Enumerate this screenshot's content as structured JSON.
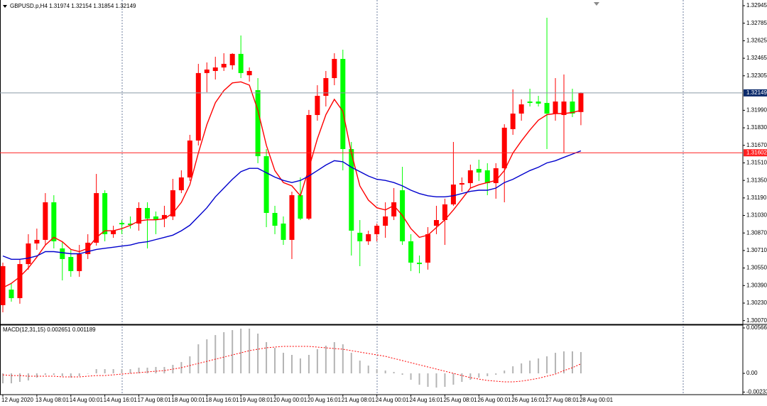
{
  "chart_data": [
    {
      "type": "candlestick",
      "title": "GBPUSD.p,H4  1.31974 1.32154 1.31854 1.32149",
      "categories": [
        "12 Aug 2020",
        null,
        null,
        null,
        "13 Aug 08:01",
        null,
        null,
        null,
        "14 Aug 00:01",
        null,
        null,
        null,
        "14 Aug 16:01",
        null,
        null,
        null,
        "17 Aug 08:01",
        null,
        null,
        null,
        "18 Aug 00:01",
        null,
        null,
        null,
        "18 Aug 16:01",
        null,
        null,
        null,
        "19 Aug 08:01",
        null,
        null,
        null,
        "20 Aug 00:01",
        null,
        null,
        null,
        "20 Aug 16:01",
        null,
        null,
        null,
        "21 Aug 08:01",
        null,
        null,
        null,
        "24 Aug 00:01",
        null,
        null,
        null,
        "24 Aug 16:01",
        null,
        null,
        null,
        "25 Aug 08:01",
        null,
        null,
        null,
        "26 Aug 00:01",
        null,
        null,
        null,
        "26 Aug 16:01",
        null,
        null,
        null,
        "27 Aug 08:01",
        null,
        null,
        null,
        "28 Aug 00:01"
      ],
      "open": [
        1.30211,
        1.30353,
        1.30275,
        1.30586,
        1.30774,
        1.30807,
        1.3115,
        1.30729,
        1.30651,
        1.30522,
        1.30677,
        1.30781,
        1.31234,
        1.30859,
        1.30962,
        1.30956,
        1.30956,
        1.31098,
        1.31021,
        1.31001,
        1.31021,
        1.3126,
        1.31377,
        1.31714,
        1.3233,
        1.32349,
        1.32381,
        1.32401,
        1.32505,
        1.3231,
        1.32174,
        1.31571,
        1.31053,
        1.30956,
        1.30807,
        1.31215,
        1.31001,
        1.31947,
        1.32122,
        1.32284,
        1.32459,
        1.31636,
        1.30872,
        1.30794,
        1.30859,
        1.30936,
        1.31021,
        1.3126,
        1.30794,
        1.30599,
        1.30599,
        1.30936,
        1.30988,
        1.31131,
        1.31312,
        1.31325,
        1.31455,
        1.31442,
        1.31325,
        1.31461,
        1.31818,
        1.3196,
        1.3207,
        1.3207,
        1.32057,
        1.3196,
        1.31947,
        1.3207,
        1.31974
      ],
      "high": [
        1.30599,
        1.30405,
        1.30632,
        1.30859,
        1.3091,
        1.31234,
        1.31215,
        1.30794,
        1.30716,
        1.30761,
        1.30859,
        1.31409,
        1.3126,
        1.30936,
        1.30988,
        1.31021,
        1.3115,
        1.3115,
        1.31066,
        1.31118,
        1.31364,
        1.31442,
        1.31766,
        1.32414,
        1.32427,
        1.32479,
        1.32511,
        1.32511,
        1.32673,
        1.32381,
        1.32284,
        1.31636,
        1.31118,
        1.31021,
        1.31247,
        1.31377,
        1.31993,
        1.32219,
        1.32349,
        1.32511,
        1.32543,
        1.31701,
        1.30988,
        1.30891,
        1.30956,
        1.3115,
        1.3128,
        1.31474,
        1.30859,
        1.30664,
        1.30923,
        1.31118,
        1.31183,
        1.31701,
        1.31377,
        1.31494,
        1.31539,
        1.31507,
        1.31507,
        1.31863,
        1.32181,
        1.3209,
        1.32187,
        1.32122,
        1.32835,
        1.32284,
        1.32317,
        1.32187,
        1.32154
      ],
      "low": [
        1.30146,
        1.30243,
        1.30224,
        1.30535,
        1.30716,
        1.30761,
        1.30729,
        1.30437,
        1.3047,
        1.3047,
        1.30632,
        1.30755,
        1.30794,
        1.30826,
        1.30859,
        1.3091,
        1.30891,
        1.30729,
        1.30859,
        1.30923,
        1.30988,
        1.31234,
        1.31345,
        1.31669,
        1.32155,
        1.32271,
        1.32349,
        1.32362,
        1.32284,
        1.32252,
        1.31507,
        1.30923,
        1.30859,
        1.30761,
        1.30632,
        1.30988,
        1.30988,
        1.31895,
        1.32025,
        1.32219,
        1.31442,
        1.30664,
        1.30567,
        1.30761,
        1.30794,
        1.30826,
        1.30988,
        1.30761,
        1.30522,
        1.30502,
        1.30535,
        1.30859,
        1.30761,
        1.31118,
        1.31247,
        1.3128,
        1.31345,
        1.31215,
        1.31183,
        1.3115,
        1.31766,
        1.31895,
        1.32025,
        1.32025,
        1.31636,
        1.31895,
        1.31604,
        1.31928,
        1.31854
      ],
      "close": [
        1.30567,
        1.30275,
        1.30586,
        1.30774,
        1.30807,
        1.3115,
        1.30794,
        1.30632,
        1.30522,
        1.30677,
        1.30781,
        1.31234,
        1.30859,
        1.30891,
        1.30949,
        1.30943,
        1.31098,
        1.31001,
        1.30988,
        1.31034,
        1.3126,
        1.31377,
        1.31714,
        1.3233,
        1.32362,
        1.32381,
        1.32414,
        1.32505,
        1.3233,
        1.32349,
        1.31571,
        1.31053,
        1.30936,
        1.30807,
        1.31215,
        1.31001,
        1.31947,
        1.32122,
        1.32284,
        1.32459,
        1.31636,
        1.30891,
        1.30794,
        1.30859,
        1.30936,
        1.31021,
        1.3115,
        1.30794,
        1.30599,
        1.30586,
        1.30859,
        1.30988,
        1.31131,
        1.31312,
        1.31325,
        1.31442,
        1.31422,
        1.31325,
        1.31461,
        1.31831,
        1.3196,
        1.32044,
        1.32057,
        1.32051,
        1.3196,
        1.3207,
        1.3207,
        1.3196,
        1.32149
      ],
      "up_color": "#ff0000",
      "down_color": "#00ff00",
      "moving_averages": [
        {
          "color": "#ff0000",
          "values": [
            1.3037,
            1.3041,
            1.3047,
            1.3055,
            1.3065,
            1.3076,
            1.3083,
            1.3079,
            1.3072,
            1.307,
            1.3073,
            1.3083,
            1.3089,
            1.3089,
            1.3091,
            1.3094,
            1.3098,
            1.3099,
            1.3099,
            1.31,
            1.3105,
            1.3115,
            1.3131,
            1.316,
            1.3186,
            1.3206,
            1.3217,
            1.3224,
            1.3225,
            1.3222,
            1.3199,
            1.3167,
            1.3144,
            1.3133,
            1.313,
            1.3121,
            1.3146,
            1.3173,
            1.3195,
            1.3209,
            1.3198,
            1.316,
            1.313,
            1.3117,
            1.311,
            1.3108,
            1.3112,
            1.3103,
            1.3091,
            1.3083,
            1.3085,
            1.3092,
            1.3099,
            1.3108,
            1.3118,
            1.3128,
            1.3131,
            1.3133,
            1.3135,
            1.3144,
            1.316,
            1.3171,
            1.3181,
            1.319,
            1.3195,
            1.3196,
            1.3196,
            1.3197,
            1.3199
          ]
        },
        {
          "color": "#0000cd",
          "values": [
            1.3066,
            1.3063,
            1.3063,
            1.3064,
            1.3066,
            1.307,
            1.307,
            1.3069,
            1.3068,
            1.3068,
            1.307,
            1.3072,
            1.3073,
            1.3074,
            1.3075,
            1.3076,
            1.3078,
            1.3079,
            1.3081,
            1.3083,
            1.3085,
            1.3089,
            1.3094,
            1.3102,
            1.311,
            1.312,
            1.3128,
            1.3136,
            1.3143,
            1.3146,
            1.3146,
            1.3142,
            1.3138,
            1.3135,
            1.3133,
            1.3135,
            1.3139,
            1.3144,
            1.3149,
            1.3153,
            1.3152,
            1.3147,
            1.3143,
            1.3139,
            1.3136,
            1.3135,
            1.3133,
            1.313,
            1.3126,
            1.3123,
            1.3121,
            1.312,
            1.312,
            1.3121,
            1.3123,
            1.3125,
            1.3126,
            1.3126,
            1.3128,
            1.3133,
            1.3136,
            1.314,
            1.3144,
            1.3147,
            1.3151,
            1.3153,
            1.3156,
            1.3159,
            1.3162
          ]
        }
      ],
      "price_lines": [
        {
          "value": 1.32149,
          "color": "#8a9aa8",
          "label_color": "#0b2a6b"
        },
        {
          "value": 1.31602,
          "color": "#ff2020",
          "label_color": "#ff2020"
        }
      ],
      "ylim": [
        1.30042,
        1.32984
      ],
      "yticks": [
        1.32945,
        1.32785,
        1.32625,
        1.32465,
        1.32305,
        {
          "value": 1.3199,
          "label": "1.31990"
        },
        {
          "value": 1.3183,
          "label": "1.31830"
        },
        {
          "value": 1.3167,
          "label": "1.31670"
        },
        {
          "value": 1.3151,
          "label": "1.31510"
        },
        {
          "value": 1.3135,
          "label": "1.31350"
        },
        {
          "value": 1.3119,
          "label": "1.31190"
        },
        {
          "value": 1.3103,
          "label": "1.31030"
        },
        {
          "value": 1.3087,
          "label": "1.30870"
        },
        {
          "value": 1.3071,
          "label": "1.30710"
        },
        {
          "value": 1.3055,
          "label": "1.30550"
        },
        {
          "value": 1.3039,
          "label": "1.30390"
        },
        {
          "value": 1.3023,
          "label": "1.30230"
        },
        {
          "value": 1.3007,
          "label": "1.30070"
        }
      ],
      "grid": false
    },
    {
      "type": "macd",
      "title": "MACD(12,31,15) 0.002651 0.001189",
      "histogram": [
        -0.00124,
        -0.00124,
        -0.00106,
        -0.00088,
        -0.00053,
        -0.00018,
        -0.00018,
        -0.00035,
        -0.00053,
        -0.00035,
        0,
        0.00053,
        0.00053,
        0.00053,
        0.00053,
        0.00053,
        0.00071,
        0.00071,
        0.0008,
        0.0008,
        0.00106,
        0.00141,
        0.00212,
        0.00362,
        0.00424,
        0.00477,
        0.00513,
        0.00539,
        0.00557,
        0.00557,
        0.00495,
        0.00389,
        0.00318,
        0.00256,
        0.0023,
        0.00186,
        0.0023,
        0.00301,
        0.00345,
        0.00389,
        0.00362,
        0.00256,
        0.00159,
        0.00097,
        0.00053,
        0.00035,
        0.00018,
        -0.00018,
        -0.0008,
        -0.00141,
        -0.00168,
        -0.00177,
        -0.00168,
        -0.00141,
        -0.00106,
        -0.0008,
        -0.00053,
        -0.00035,
        -0.00018,
        0.00035,
        0.00088,
        0.00124,
        0.00159,
        0.00186,
        0.00212,
        0.00256,
        0.00274,
        0.00274,
        0.002651
      ],
      "signal": [
        -0.00018,
        -0.00027,
        -0.00027,
        -0.00035,
        -0.00035,
        -0.00035,
        -0.00035,
        -0.00044,
        -0.00044,
        -0.00044,
        -0.00035,
        -0.00027,
        -0.00027,
        -0.00018,
        -9e-05,
        0,
        9e-05,
        0.00018,
        0.00027,
        0.00035,
        0.00053,
        0.00071,
        0.00097,
        0.00124,
        0.0015,
        0.00177,
        0.00203,
        0.0023,
        0.00256,
        0.00283,
        0.00301,
        0.00318,
        0.00327,
        0.00336,
        0.00336,
        0.00336,
        0.00336,
        0.00327,
        0.00318,
        0.00309,
        0.00301,
        0.00283,
        0.00265,
        0.00248,
        0.0023,
        0.00212,
        0.00186,
        0.00159,
        0.00133,
        0.00106,
        0.0008,
        0.00053,
        0.00027,
        0,
        -0.00027,
        -0.00053,
        -0.00071,
        -0.00088,
        -0.00097,
        -0.00106,
        -0.00106,
        -0.00097,
        -0.0008,
        -0.00062,
        -0.00035,
        -9e-05,
        0.00035,
        0.00071,
        0.001189
      ],
      "histogram_color": "#b4b4b4",
      "signal_color": "#ff0000",
      "ylim": [
        -0.00265,
        0.00619
      ],
      "yticks": [
        0.00566,
        {
          "value": 0,
          "label": "0.00"
        },
        -0.00233
      ]
    }
  ]
}
